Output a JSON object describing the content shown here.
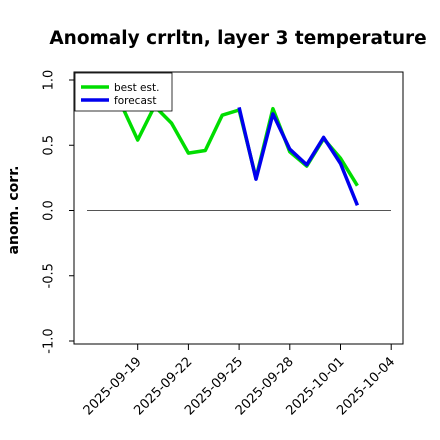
{
  "chart_data": {
    "type": "line",
    "title": "Anomaly crrltn, layer 3 temperature",
    "xlabel": "",
    "ylabel": "anom. corr.",
    "ylim": [
      -1.0,
      1.0
    ],
    "yticks": [
      "-1.0",
      "-0.5",
      "0.0",
      "0.5",
      "1.0"
    ],
    "xtick_labels": [
      "2025-09-19",
      "2025-09-22",
      "2025-09-25",
      "2025-09-28",
      "2025-10-01",
      "2025-10-04"
    ],
    "highlight_tick": "2025-09-25",
    "highlight_color": "#228b22",
    "reference_line": 0.0,
    "x": [
      "2025-09-16",
      "2025-09-17",
      "2025-09-18",
      "2025-09-19",
      "2025-09-20",
      "2025-09-21",
      "2025-09-22",
      "2025-09-23",
      "2025-09-24",
      "2025-09-25",
      "2025-09-26",
      "2025-09-27",
      "2025-09-28",
      "2025-09-29",
      "2025-09-30",
      "2025-10-01",
      "2025-10-02",
      "2025-10-03",
      "2025-10-04"
    ],
    "series": [
      {
        "name": "best est.",
        "color": "#00dd00",
        "values": [
          0.83,
          0.99,
          0.82,
          0.54,
          0.8,
          0.67,
          0.44,
          0.46,
          0.73,
          0.77,
          0.25,
          0.78,
          0.45,
          0.34,
          0.55,
          0.4,
          0.19,
          null,
          null
        ]
      },
      {
        "name": "forecast",
        "color": "#0000ee",
        "values": [
          null,
          null,
          null,
          null,
          null,
          null,
          null,
          null,
          null,
          0.79,
          0.24,
          0.74,
          0.47,
          0.35,
          0.56,
          0.36,
          0.04,
          null,
          null
        ]
      }
    ],
    "legend": {
      "position": "top-left",
      "entries": [
        "best est.",
        "forecast"
      ]
    },
    "grid": false
  }
}
